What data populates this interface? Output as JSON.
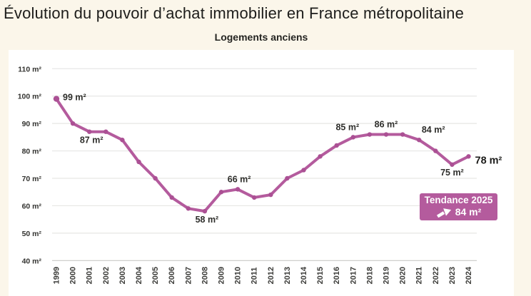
{
  "page": {
    "background_color": "#fbf6ea",
    "panel_color": "#ffffff"
  },
  "header": {
    "title": "Évolution du pouvoir d’achat immobilier en France métropolitaine",
    "subtitle": "Logements anciens"
  },
  "chart_data": {
    "type": "line",
    "title": "Évolution du pouvoir d’achat immobilier en France métropolitaine",
    "subtitle": "Logements anciens",
    "unit": "m²",
    "xlabel": "",
    "ylabel": "",
    "ylim": [
      40,
      110
    ],
    "grid": true,
    "legend": false,
    "categories": [
      1999,
      2000,
      2001,
      2002,
      2003,
      2004,
      2005,
      2006,
      2007,
      2008,
      2009,
      2010,
      2011,
      2012,
      2013,
      2014,
      2015,
      2016,
      2017,
      2018,
      2019,
      2020,
      2021,
      2022,
      2023,
      2024
    ],
    "values": [
      99,
      90,
      87,
      87,
      84,
      76,
      70,
      63,
      59,
      58,
      65,
      66,
      63,
      64,
      70,
      73,
      78,
      82,
      85,
      86,
      86,
      86,
      84,
      80,
      75,
      78
    ],
    "yticks": [
      {
        "value": 110,
        "label": "110 m²"
      },
      {
        "value": 100,
        "label": "100 m²"
      },
      {
        "value": 90,
        "label": "90 m²"
      },
      {
        "value": 80,
        "label": "80 m²"
      },
      {
        "value": 70,
        "label": "70 m²"
      },
      {
        "value": 60,
        "label": "60 m²"
      },
      {
        "value": 50,
        "label": "50 m²"
      },
      {
        "value": 40,
        "label": "40 m²"
      }
    ],
    "point_labels": [
      {
        "year": 1999,
        "text": "99 m²",
        "placement": "right",
        "dy": -2
      },
      {
        "year": 2001,
        "text": "87 m²",
        "placement": "below",
        "dx": 3
      },
      {
        "year": 2008,
        "text": "58 m²",
        "placement": "below",
        "dx": 3
      },
      {
        "year": 2010,
        "text": "66 m²",
        "placement": "above",
        "dx": 2
      },
      {
        "year": 2017,
        "text": "85 m²",
        "placement": "above",
        "dx": -8
      },
      {
        "year": 2019,
        "text": "86 m²",
        "placement": "above"
      },
      {
        "year": 2021,
        "text": "84 m²",
        "placement": "above",
        "dx": 20
      },
      {
        "year": 2023,
        "text": "75 m²",
        "placement": "below",
        "dy": -1
      },
      {
        "year": 2024,
        "text": "78 m²",
        "placement": "right",
        "dy": 6,
        "bold": true
      }
    ],
    "trend_badge": {
      "title": "Tendance 2025",
      "value": "84 m²",
      "icon": "trend-up-arrow"
    },
    "colors": {
      "line": "#b45b9d",
      "marker": "#ab5094",
      "badge_background": "#b45b9d",
      "gridline": "#e6e6e4",
      "baseline": "#c9c9c6"
    }
  }
}
